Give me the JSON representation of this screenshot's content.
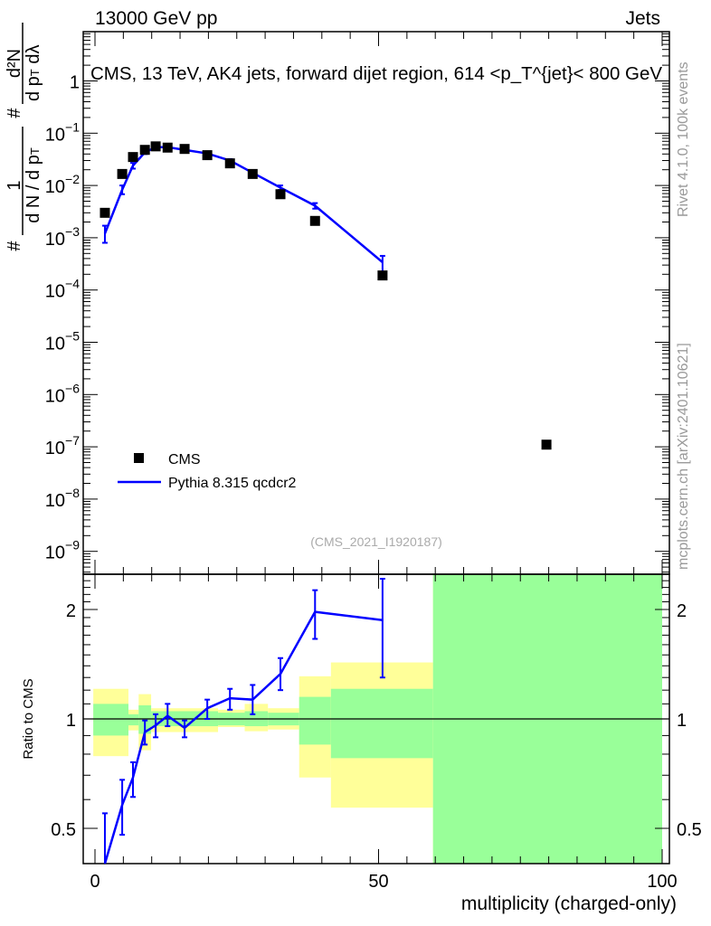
{
  "header": {
    "left": "13000 GeV pp",
    "right": "Jets"
  },
  "side_labels": {
    "rivet": "Rivet 4.1.0,  100k events",
    "mcplots": "mcplots.cern.ch [arXiv:2401.10621]"
  },
  "watermark": "(CMS_2021_I1920187)",
  "colors": {
    "mc": "#0000ff",
    "data": "#000000",
    "band_yellow": "#ffff99",
    "band_green": "#99ff99"
  },
  "chart_data": [
    {
      "type": "scatter",
      "title": "CMS, 13 TeV, AK4 jets, forward dijet region, 614 <p_T^{jet}< 800 GeV",
      "title_parts": {
        "main": "CMS, 13 TeV, AK4 jets, forward dijet region, 614 <p",
        "sup": "{jet}",
        "sub": "T",
        "end": "}< 800 GeV"
      },
      "ylabel_parts": {
        "one": "1",
        "num1": "#",
        "den1": "d N / d p",
        "sub1": "T",
        "num2": "d²N",
        "den2": "d p",
        "sub2": "T",
        "lam": " dλ",
        "hash": "#"
      },
      "yscale": "log",
      "ylim": [
        1.1e-10,
        8.9
      ],
      "xlim": [
        -2,
        101
      ],
      "yticks": [
        {
          "v": 1,
          "label": "1",
          "exp": ""
        },
        {
          "v": 0.1,
          "label": "10",
          "exp": "−1"
        },
        {
          "v": 0.01,
          "label": "10",
          "exp": "−2"
        },
        {
          "v": 0.001,
          "label": "10",
          "exp": "−3"
        },
        {
          "v": 0.0001,
          "label": "10",
          "exp": "−4"
        },
        {
          "v": 1e-05,
          "label": "10",
          "exp": "−5"
        },
        {
          "v": 1e-06,
          "label": "10",
          "exp": "−6"
        },
        {
          "v": 1e-07,
          "label": "10",
          "exp": "−7"
        },
        {
          "v": 1e-08,
          "label": "10",
          "exp": "−8"
        },
        {
          "v": 1e-09,
          "label": "10",
          "exp": "−9"
        }
      ],
      "legend": {
        "placement": "bottom-left",
        "entries": [
          "CMS",
          "Pythia 8.315 qcdcr2"
        ]
      },
      "series": [
        {
          "name": "CMS",
          "marker": "square",
          "x": [
            1.75,
            4.8,
            6.7,
            8.8,
            10.7,
            12.8,
            15.8,
            19.8,
            23.8,
            27.8,
            32.7,
            38.8,
            50.7,
            79.6
          ],
          "y": [
            0.003,
            0.0166,
            0.035,
            0.048,
            0.056,
            0.053,
            0.05,
            0.038,
            0.0265,
            0.0166,
            0.0068,
            0.0021,
            0.00019,
            1.1e-07
          ]
        },
        {
          "name": "Pythia 8.315 qcdcr2",
          "marker": "line",
          "x": [
            1.75,
            4.8,
            6.7,
            8.8,
            10.7,
            12.8,
            15.8,
            19.8,
            23.8,
            27.8,
            32.7,
            38.8,
            50.7
          ],
          "y": [
            0.0012,
            0.0083,
            0.024,
            0.043,
            0.054,
            0.054,
            0.048,
            0.041,
            0.03,
            0.0175,
            0.0091,
            0.0041,
            0.00034
          ],
          "yerr_lo": [
            0.0008,
            0.0068,
            0.021,
            0.04,
            0.051,
            0.051,
            0.046,
            0.039,
            0.028,
            0.016,
            0.0082,
            0.0036,
            0.00022
          ],
          "yerr_hi": [
            0.0017,
            0.01,
            0.027,
            0.046,
            0.057,
            0.057,
            0.05,
            0.043,
            0.032,
            0.019,
            0.01,
            0.0046,
            0.00045
          ]
        }
      ]
    },
    {
      "type": "line",
      "ylabel": "Ratio to CMS",
      "xlabel": "multiplicity (charged-only)",
      "yscale": "log",
      "ylim": [
        0.4,
        2.5
      ],
      "xlim": [
        -2,
        101
      ],
      "xticks": [
        0,
        50,
        100
      ],
      "xtick_labels": [
        "0",
        "50",
        "100"
      ],
      "yticks": [
        0.5,
        1,
        2
      ],
      "ytick_labels": [
        "0.5",
        "1",
        "2"
      ],
      "bands": [
        {
          "x": [
            -0.3,
            5.9
          ],
          "yellow": [
            0.79,
            1.21
          ],
          "green": [
            0.9,
            1.1
          ]
        },
        {
          "x": [
            5.9,
            7.7
          ],
          "yellow": [
            0.93,
            1.06
          ],
          "green": [
            0.96,
            1.03
          ]
        },
        {
          "x": [
            7.7,
            9.9
          ],
          "yellow": [
            0.82,
            1.17
          ],
          "green": [
            0.91,
            1.09
          ]
        },
        {
          "x": [
            9.9,
            21.7
          ],
          "yellow": [
            0.92,
            1.07
          ],
          "green": [
            0.955,
            1.05
          ]
        },
        {
          "x": [
            21.7,
            26.4
          ],
          "yellow": [
            0.95,
            1.06
          ],
          "green": [
            0.96,
            1.04
          ]
        },
        {
          "x": [
            26.4,
            30.5
          ],
          "yellow": [
            0.925,
            1.1
          ],
          "green": [
            0.955,
            1.05
          ]
        },
        {
          "x": [
            30.5,
            36
          ],
          "yellow": [
            0.935,
            1.07
          ],
          "green": [
            0.96,
            1.04
          ]
        },
        {
          "x": [
            36,
            41.6
          ],
          "yellow": [
            0.69,
            1.31
          ],
          "green": [
            0.85,
            1.15
          ]
        },
        {
          "x": [
            41.6,
            59.6
          ],
          "yellow": [
            0.57,
            1.43
          ],
          "green": [
            0.78,
            1.21
          ]
        },
        {
          "x": [
            59.6,
            100
          ],
          "yellow": [
            0.3,
            3
          ],
          "green": [
            0.3,
            3
          ]
        }
      ],
      "series": [
        {
          "name": "Pythia 8.315 qcdcr2",
          "x": [
            1.75,
            4.8,
            6.7,
            8.8,
            10.7,
            12.8,
            15.8,
            19.8,
            23.8,
            27.8,
            32.7,
            38.8,
            50.7
          ],
          "y": [
            0.39,
            0.58,
            0.69,
            0.92,
            0.96,
            1.02,
            0.945,
            1.07,
            1.14,
            1.13,
            1.33,
            1.97,
            1.87
          ],
          "yerr_lo": [
            0.39,
            0.48,
            0.61,
            0.85,
            0.89,
            0.955,
            0.89,
            1.0,
            1.06,
            1.03,
            1.2,
            1.66,
            1.3
          ],
          "yerr_hi": [
            0.55,
            0.68,
            0.76,
            0.99,
            1.03,
            1.1,
            0.99,
            1.13,
            1.21,
            1.24,
            1.47,
            2.26,
            2.43
          ]
        }
      ]
    }
  ]
}
